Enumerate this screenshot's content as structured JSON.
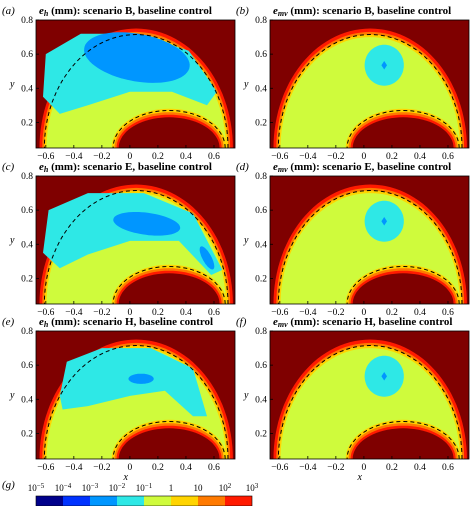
{
  "colors": {
    "c1": "#00008b",
    "c2": "#0032ff",
    "c3": "#0096ff",
    "c4": "#2ee8e6",
    "c5": "#cffb3c",
    "c6": "#ffd400",
    "c7": "#ff7a00",
    "c8": "#ff1a00",
    "c9": "#7f0000"
  },
  "chart_data": {
    "type": "heatmap",
    "x_ticks": [
      "−0.6",
      "−0.4",
      "−0.2",
      "0",
      "0.2",
      "0.4",
      "0.6"
    ],
    "y_ticks": [
      "0.2",
      "0.4",
      "0.6",
      "0.8"
    ],
    "xlim": [
      -0.67,
      0.75
    ],
    "ylim": [
      0.05,
      0.8
    ],
    "xlabel": "x",
    "ylabel": "y",
    "panels": [
      {
        "label": "(a)",
        "var": "e",
        "sub": "h",
        "title_rest": " (mm): scenario B, baseline control",
        "kind": "eh",
        "scenario": "B"
      },
      {
        "label": "(b)",
        "var": "e",
        "sub": "mv",
        "title_rest": " (mm): scenario B, baseline control",
        "kind": "emv",
        "scenario": "B"
      },
      {
        "label": "(c)",
        "var": "e",
        "sub": "h",
        "title_rest": " (mm): scenario E, baseline control",
        "kind": "eh",
        "scenario": "E"
      },
      {
        "label": "(d)",
        "var": "e",
        "sub": "mv",
        "title_rest": " (mm): scenario E, baseline control",
        "kind": "emv",
        "scenario": "E"
      },
      {
        "label": "(e)",
        "var": "e",
        "sub": "h",
        "title_rest": " (mm): scenario H, baseline control",
        "kind": "eh",
        "scenario": "H"
      },
      {
        "label": "(f)",
        "var": "e",
        "sub": "mv",
        "title_rest": " (mm): scenario H, baseline control",
        "kind": "emv",
        "scenario": "H"
      }
    ],
    "colorbar": {
      "label": "(g)",
      "ticks": [
        {
          "base": "10",
          "exp": "−5"
        },
        {
          "base": "10",
          "exp": "−4"
        },
        {
          "base": "10",
          "exp": "−3"
        },
        {
          "base": "10",
          "exp": "−2"
        },
        {
          "base": "10",
          "exp": "−1"
        },
        {
          "base": "1",
          "exp": ""
        },
        {
          "base": "10",
          "exp": ""
        },
        {
          "base": "10",
          "exp": "2"
        },
        {
          "base": "10",
          "exp": "3"
        }
      ]
    }
  }
}
